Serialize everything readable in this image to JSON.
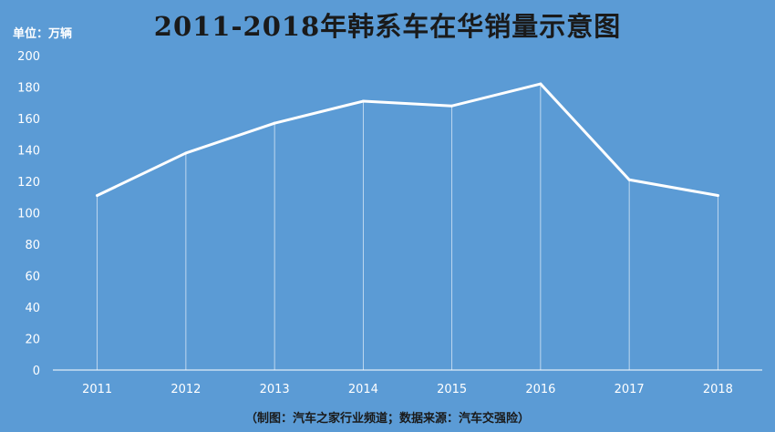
{
  "title": "2011-2018年韩系车在华销量示意图",
  "unit_label": "单位：万辆",
  "footer": "（制图：汽车之家行业频道；数据来源：汽车交强险）",
  "colors": {
    "background": "#5b9bd5",
    "line": "#ffffff",
    "drop_lines": "#ffffff",
    "axis": "#ffffff"
  },
  "chart_data": {
    "type": "line",
    "title": "2011-2018年韩系车在华销量示意图",
    "xlabel": "",
    "ylabel": "单位：万辆",
    "categories": [
      "2011",
      "2012",
      "2013",
      "2014",
      "2015",
      "2016",
      "2017",
      "2018"
    ],
    "values": [
      111,
      138,
      157,
      171,
      168,
      182,
      121,
      111
    ],
    "ylim": [
      0,
      200
    ],
    "yticks": [
      0,
      20,
      40,
      60,
      80,
      100,
      120,
      140,
      160,
      180,
      200
    ],
    "grid": false,
    "drop_lines": true,
    "legend": "none"
  }
}
